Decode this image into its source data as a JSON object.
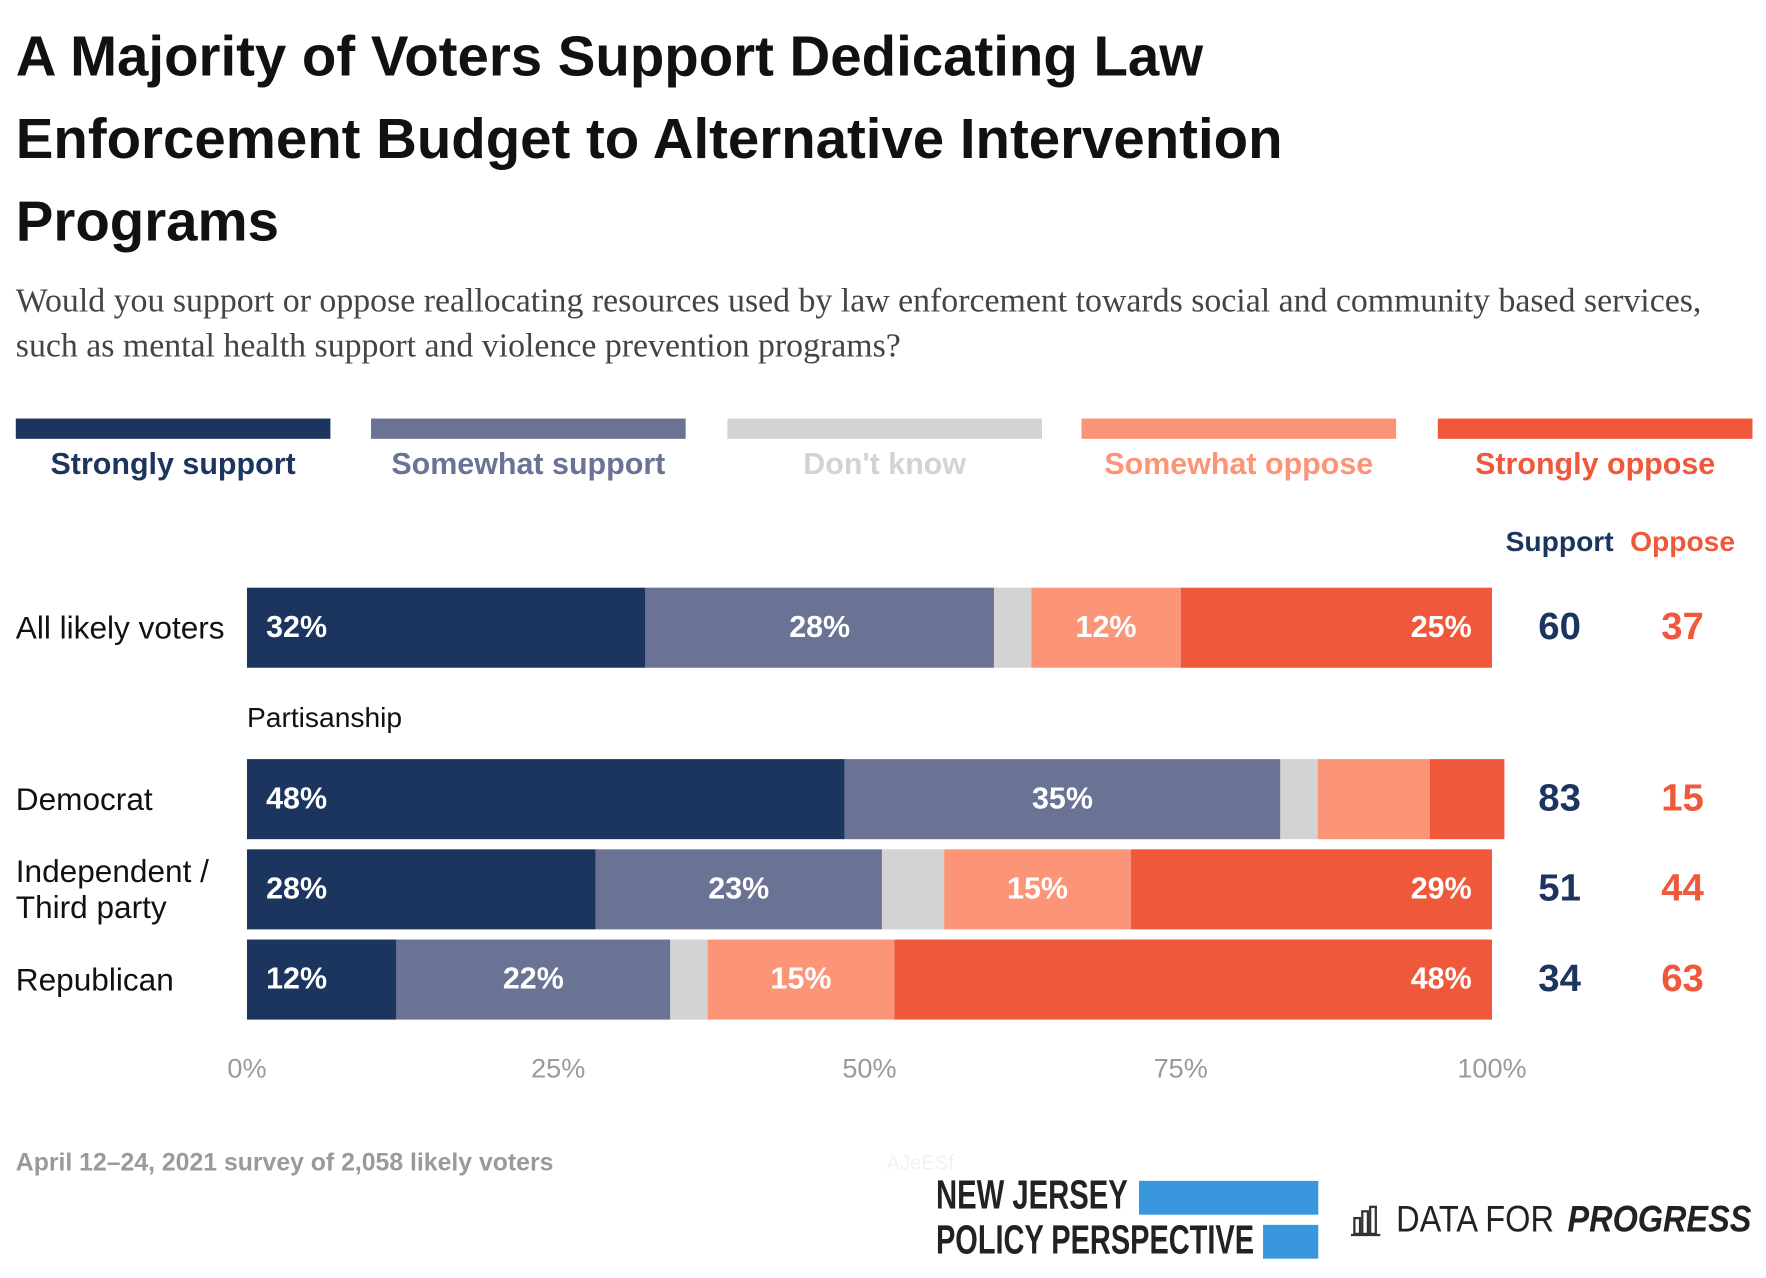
{
  "chart_data": {
    "type": "bar",
    "orientation": "horizontal",
    "stacked": true,
    "title": "A Majority of Voters Support Dedicating Law Enforcement Budget to Alternative Intervention Programs",
    "subtitle": "Would you support or oppose reallocating resources used by law enforcement towards social and community based services, such as mental health support and violence prevention programs?",
    "categories": [
      "All likely voters",
      "Democrat",
      "Independent / Third party",
      "Republican"
    ],
    "group_label": "Partisanship",
    "series": [
      {
        "name": "Strongly support",
        "color": "#1c355e",
        "values": [
          32,
          48,
          28,
          12
        ],
        "value_labels": [
          "32%",
          "48%",
          "28%",
          "12%"
        ]
      },
      {
        "name": "Somewhat support",
        "color": "#6b7394",
        "values": [
          28,
          35,
          23,
          22
        ],
        "value_labels": [
          "28%",
          "35%",
          "23%",
          "22%"
        ]
      },
      {
        "name": "Don't know",
        "color": "#d3d3d3",
        "values": [
          3,
          3,
          5,
          3
        ],
        "value_labels": [
          null,
          null,
          null,
          null
        ]
      },
      {
        "name": "Somewhat oppose",
        "color": "#fc9478",
        "values": [
          12,
          9,
          15,
          15
        ],
        "value_labels": [
          "12%",
          null,
          "15%",
          "15%"
        ]
      },
      {
        "name": "Strongly oppose",
        "color": "#f0583c",
        "values": [
          25,
          6,
          29,
          48
        ],
        "value_labels": [
          "25%",
          null,
          "29%",
          "48%"
        ]
      }
    ],
    "totals": [
      {
        "name": "Support",
        "color": "#1c355e",
        "values": [
          60,
          83,
          51,
          34
        ]
      },
      {
        "name": "Oppose",
        "color": "#f0583c",
        "values": [
          37,
          15,
          44,
          63
        ]
      }
    ],
    "xlim": [
      0,
      100
    ],
    "xticks": [
      {
        "value": 0,
        "label": "0%"
      },
      {
        "value": 25,
        "label": "25%"
      },
      {
        "value": 50,
        "label": "50%"
      },
      {
        "value": 75,
        "label": "75%"
      },
      {
        "value": 100,
        "label": "100%"
      }
    ],
    "grid": false,
    "note": "April 12–24, 2021 survey of 2,058 likely voters",
    "watermark": "AJeESf",
    "logos": {
      "njpp": [
        "NEW JERSEY",
        "POLICY PERSPECTIVE"
      ],
      "dfp": [
        "DATA FOR",
        "PROGRESS"
      ]
    }
  }
}
